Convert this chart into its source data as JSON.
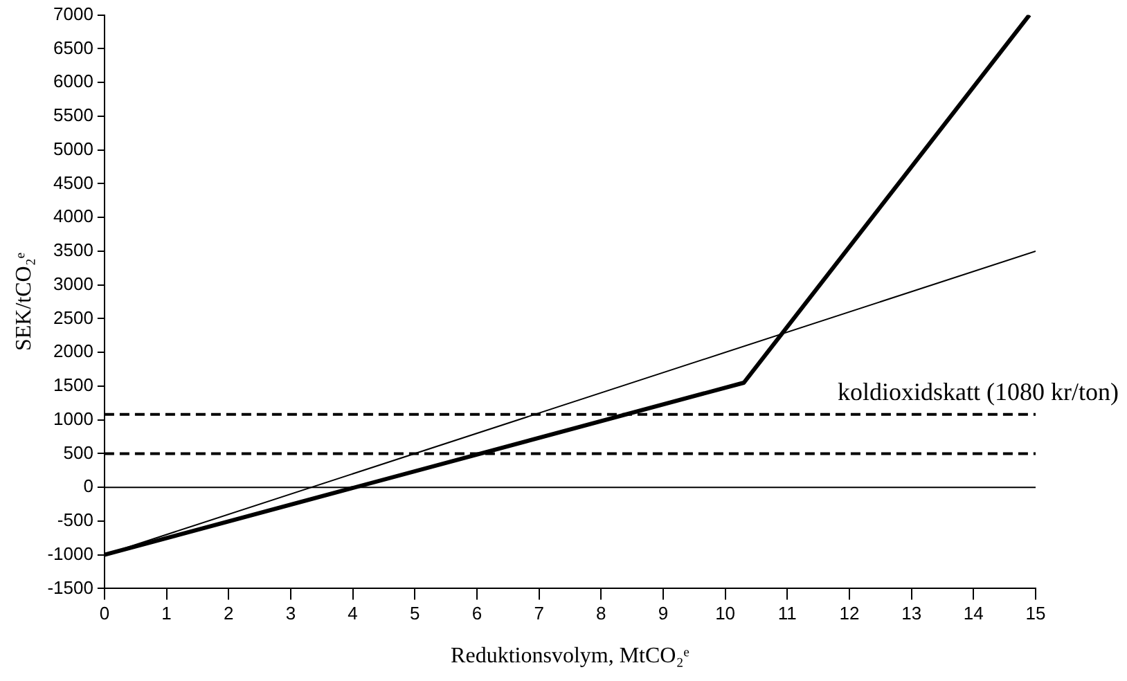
{
  "chart_data": {
    "type": "line",
    "xlabel": "Reduktionsvolym, MtCO₂ᵉ",
    "ylabel": "SEK/tCO₂ᵉ",
    "xlim": [
      0,
      15
    ],
    "xticks": [
      0,
      1,
      2,
      3,
      4,
      5,
      6,
      7,
      8,
      9,
      10,
      11,
      12,
      13,
      14,
      15
    ],
    "ylim": [
      -1500,
      7000
    ],
    "yticks": [
      -1500,
      -1000,
      -500,
      0,
      500,
      1000,
      1500,
      2000,
      2500,
      3000,
      3500,
      4000,
      4500,
      5000,
      5500,
      6000,
      6500,
      7000
    ],
    "series": [
      {
        "color": "#000000",
        "x": [
          0,
          10.3,
          14.9
        ],
        "values": [
          -1000,
          1550,
          7000
        ]
      },
      {
        "color": "#000000",
        "x": [
          0,
          15
        ],
        "values": [
          -1000,
          3500
        ]
      }
    ],
    "ref_lines": [
      {
        "axis": "y",
        "value": 1080,
        "label": "koldioxidskatt (1080 kr/ton)",
        "color": "#000000",
        "line_style": "dashed"
      },
      {
        "axis": "y",
        "value": 500,
        "label": null,
        "color": "#000000",
        "line_style": "dashed"
      },
      {
        "axis": "y",
        "value": 0,
        "label": null,
        "color": "#000000",
        "line_style": "solid"
      }
    ],
    "grid": false,
    "legend": false,
    "marker": "none",
    "line_style": "solid"
  }
}
